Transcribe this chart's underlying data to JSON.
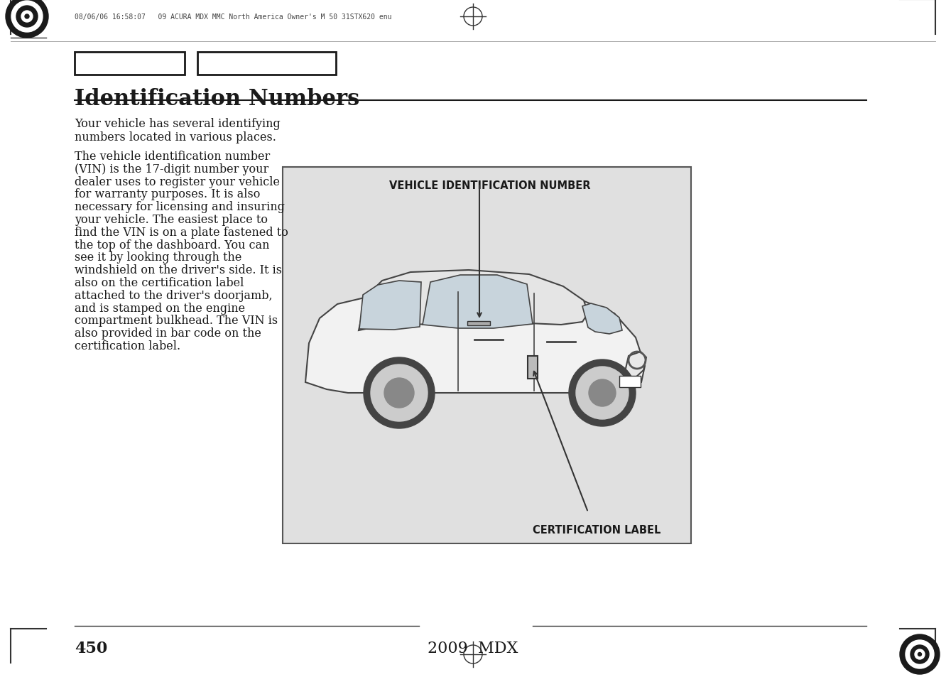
{
  "page_bg": "#ffffff",
  "header_text": "08/06/06 16:58:07   09 ACURA MDX MMC North America Owner's M 50 31STX620 enu",
  "title": "Identification Numbers",
  "footer_page": "450",
  "footer_model": "2009  MDX",
  "body_para1": "Your vehicle has several identifying\nnumbers located in various places.",
  "body_para2": "The vehicle identification number\n(VIN) is the 17-digit number your\ndealer uses to register your vehicle\nfor warranty purposes. It is also\nnecessary for licensing and insuring\nyour vehicle. The easiest place to\nfind the VIN is on a plate fastened to\nthe top of the dashboard. You can\nsee it by looking through the\nwindshield on the driver's side. It is\nalso on the certification label\nattached to the driver's doorjamb,\nand is stamped on the engine\ncompartment bulkhead. The VIN is\nalso provided in bar code on the\ncertification label.",
  "diagram_label_vin": "VEHICLE IDENTIFICATION NUMBER",
  "diagram_label_cert": "CERTIFICATION LABEL",
  "text_color": "#1a1a1a",
  "diagram_bg": "#e0e0e0",
  "diagram_border": "#555555",
  "vin_fontsize": 10.5,
  "cert_fontsize": 10.5,
  "title_fontsize": 22,
  "body_fontsize": 11.5,
  "header_fontsize": 7,
  "footer_page_fontsize": 16,
  "footer_model_fontsize": 16
}
